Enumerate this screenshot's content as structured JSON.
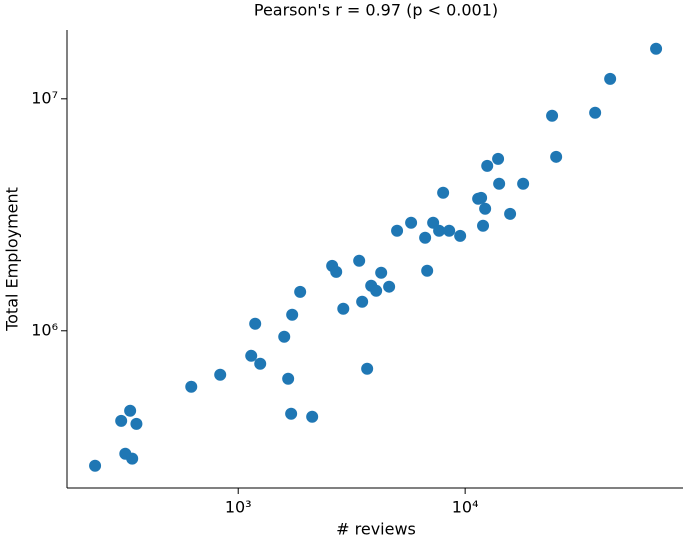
{
  "chart_data": {
    "type": "scatter",
    "title": "Pearson's r = 0.97 (p < 0.001)",
    "x_label": "# reviews",
    "y_label": "Total Employment",
    "x": [
      234,
      305,
      318,
      334,
      341,
      356,
      621,
      833,
      1141,
      1188,
      1250,
      1595,
      1660,
      1711,
      1729,
      1875,
      2118,
      2594,
      2703,
      2904,
      3412,
      3517,
      3700,
      3855,
      4055,
      4266,
      4624,
      5012,
      5779,
      6663,
      6803,
      7227,
      7678,
      7998,
      8504,
      9506,
      11410,
      11760,
      11990,
      12250,
      12510,
      13970,
      14120,
      15780,
      18010,
      24160,
      25180,
      37400,
      43550,
      69400
    ],
    "values": [
      262000,
      409000,
      295000,
      452000,
      281000,
      397000,
      574000,
      646000,
      780000,
      1072000,
      721000,
      942000,
      621000,
      439000,
      1172000,
      1472000,
      426000,
      1905000,
      1795000,
      1245000,
      2004000,
      1334000,
      686000,
      1563000,
      1487000,
      1778000,
      1549000,
      2698000,
      2923000,
      2517000,
      1815000,
      2923000,
      2698000,
      3936000,
      2698000,
      2566000,
      3707000,
      3741000,
      2838000,
      3357000,
      5140000,
      5510000,
      4305000,
      3192000,
      4305000,
      8450000,
      5623000,
      8710000,
      12190000,
      16440000
    ],
    "color": "#1f77b4",
    "xlog": true,
    "ylog": true,
    "xlim": [
      176,
      91200
    ],
    "ylim": [
      210000,
      19800000
    ],
    "xticks": [
      {
        "value": 1000,
        "label": "10³"
      },
      {
        "value": 10000,
        "label": "10⁴"
      }
    ],
    "yticks": [
      {
        "value": 1000000,
        "label": "10⁶"
      },
      {
        "value": 10000000,
        "label": "10⁷"
      }
    ],
    "grid": false
  }
}
